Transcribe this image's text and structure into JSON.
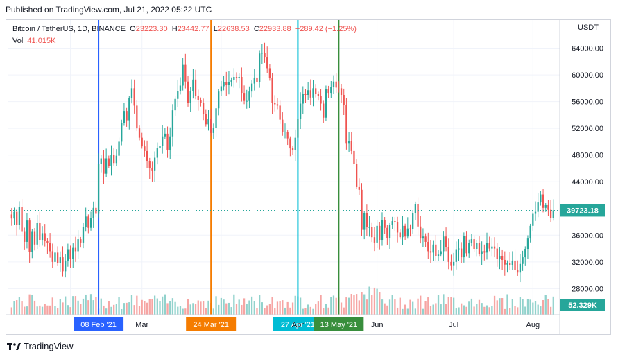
{
  "header": {
    "published": "Published on TradingView.com, Jul 21, 2022 05:22 UTC"
  },
  "legend": {
    "symbol": "Bitcoin / TetherUS, 1D, BINANCE",
    "o_label": "O",
    "o_value": "23223.30",
    "h_label": "H",
    "h_value": "23442.77",
    "l_label": "L",
    "l_value": "22638.53",
    "c_label": "C",
    "c_value": "22933.88",
    "change": "−289.42 (−1.25%)",
    "vol_label": "Vol",
    "vol_value": "41.015K"
  },
  "footer": {
    "brand": "TradingView"
  },
  "colors": {
    "up": "#26a69a",
    "down": "#ef5350",
    "up_vol": "#91d2cc",
    "down_vol": "#f6a5a3",
    "grid": "#f0f3fa",
    "axis_text": "#131722"
  },
  "chart_data": {
    "type": "candlestick",
    "currency": "USDT",
    "y_ticks": [
      "64000.00",
      "60000.00",
      "56000.00",
      "52000.00",
      "48000.00",
      "44000.00",
      "36000.00",
      "32000.00",
      "28000.00"
    ],
    "ylim": [
      24200,
      68000
    ],
    "x_ticks": [
      "Mar",
      "Apr",
      "Jun",
      "Jul",
      "Aug"
    ],
    "last_price_label": "39723.18",
    "last_volume_label": "52.329K",
    "vertical_markers": [
      {
        "label": "08 Feb '21",
        "color": "#2962ff"
      },
      {
        "label": "24 Mar '21",
        "color": "#f57c00"
      },
      {
        "label": "27 Apr '21",
        "color": "#00bcd4"
      },
      {
        "label": "13 May '21",
        "color": "#388e3c"
      }
    ],
    "closes": [
      38500,
      39500,
      37500,
      40200,
      36500,
      35000,
      38200,
      33500,
      36500,
      34600,
      37800,
      35200,
      36300,
      35100,
      34800,
      33600,
      32000,
      33400,
      31800,
      32700,
      30600,
      32200,
      33800,
      32500,
      34100,
      33600,
      35400,
      34900,
      37200,
      38800,
      37100,
      38600,
      40100,
      39200,
      46700,
      47500,
      45200,
      47500,
      46400,
      48000,
      46800,
      47900,
      50000,
      52800,
      54600,
      53200,
      56500,
      58000,
      55400,
      52000,
      50600,
      49300,
      48600,
      47100,
      46000,
      45600,
      47600,
      49000,
      49400,
      50800,
      51200,
      48800,
      50800,
      54700,
      56400,
      57600,
      58400,
      61500,
      59000,
      55800,
      57600,
      59300,
      56900,
      56200,
      55800,
      54100,
      52600,
      53400,
      51300,
      52100,
      55000,
      57500,
      58300,
      58900,
      58500,
      58900,
      59200,
      59700,
      59600,
      59700,
      57300,
      56100,
      56100,
      57500,
      58700,
      59600,
      58900,
      63200,
      63300,
      62700,
      61000,
      59500,
      55800,
      55600,
      55400,
      53300,
      51500,
      51500,
      50500,
      49000,
      48700,
      50600,
      53400,
      55700,
      57200,
      57000,
      57700,
      56600,
      58000,
      57100,
      56800,
      55700,
      53600,
      57900,
      57300,
      58200,
      59000,
      58100,
      58000,
      57000,
      55500,
      49700,
      50100,
      48600,
      46700,
      43200,
      42800,
      36800,
      39300,
      37200,
      37200,
      35700,
      34900,
      37400,
      35200,
      38300,
      37100,
      35600,
      37500,
      38100,
      37900,
      36400,
      35700,
      37400,
      35800,
      37000,
      36900,
      39300,
      40600,
      37300,
      35500,
      35800,
      35000,
      33600,
      33400,
      34600,
      32900,
      33100,
      33600,
      35800,
      34200,
      32000,
      31400,
      32000,
      33800,
      34000,
      32700,
      35900,
      33300,
      34800,
      35400,
      33900,
      34800,
      33200,
      33600,
      33400,
      34800,
      34000,
      34300,
      34000,
      32500,
      32900,
      32300,
      31600,
      31800,
      31500,
      32200,
      30800,
      30400,
      31700,
      32700,
      33900,
      35500,
      37400,
      39200,
      39500,
      40900,
      42100,
      40100,
      40500,
      39800,
      38600,
      39723
    ],
    "series": [
      {
        "name": "BTCUSDT"
      }
    ]
  }
}
